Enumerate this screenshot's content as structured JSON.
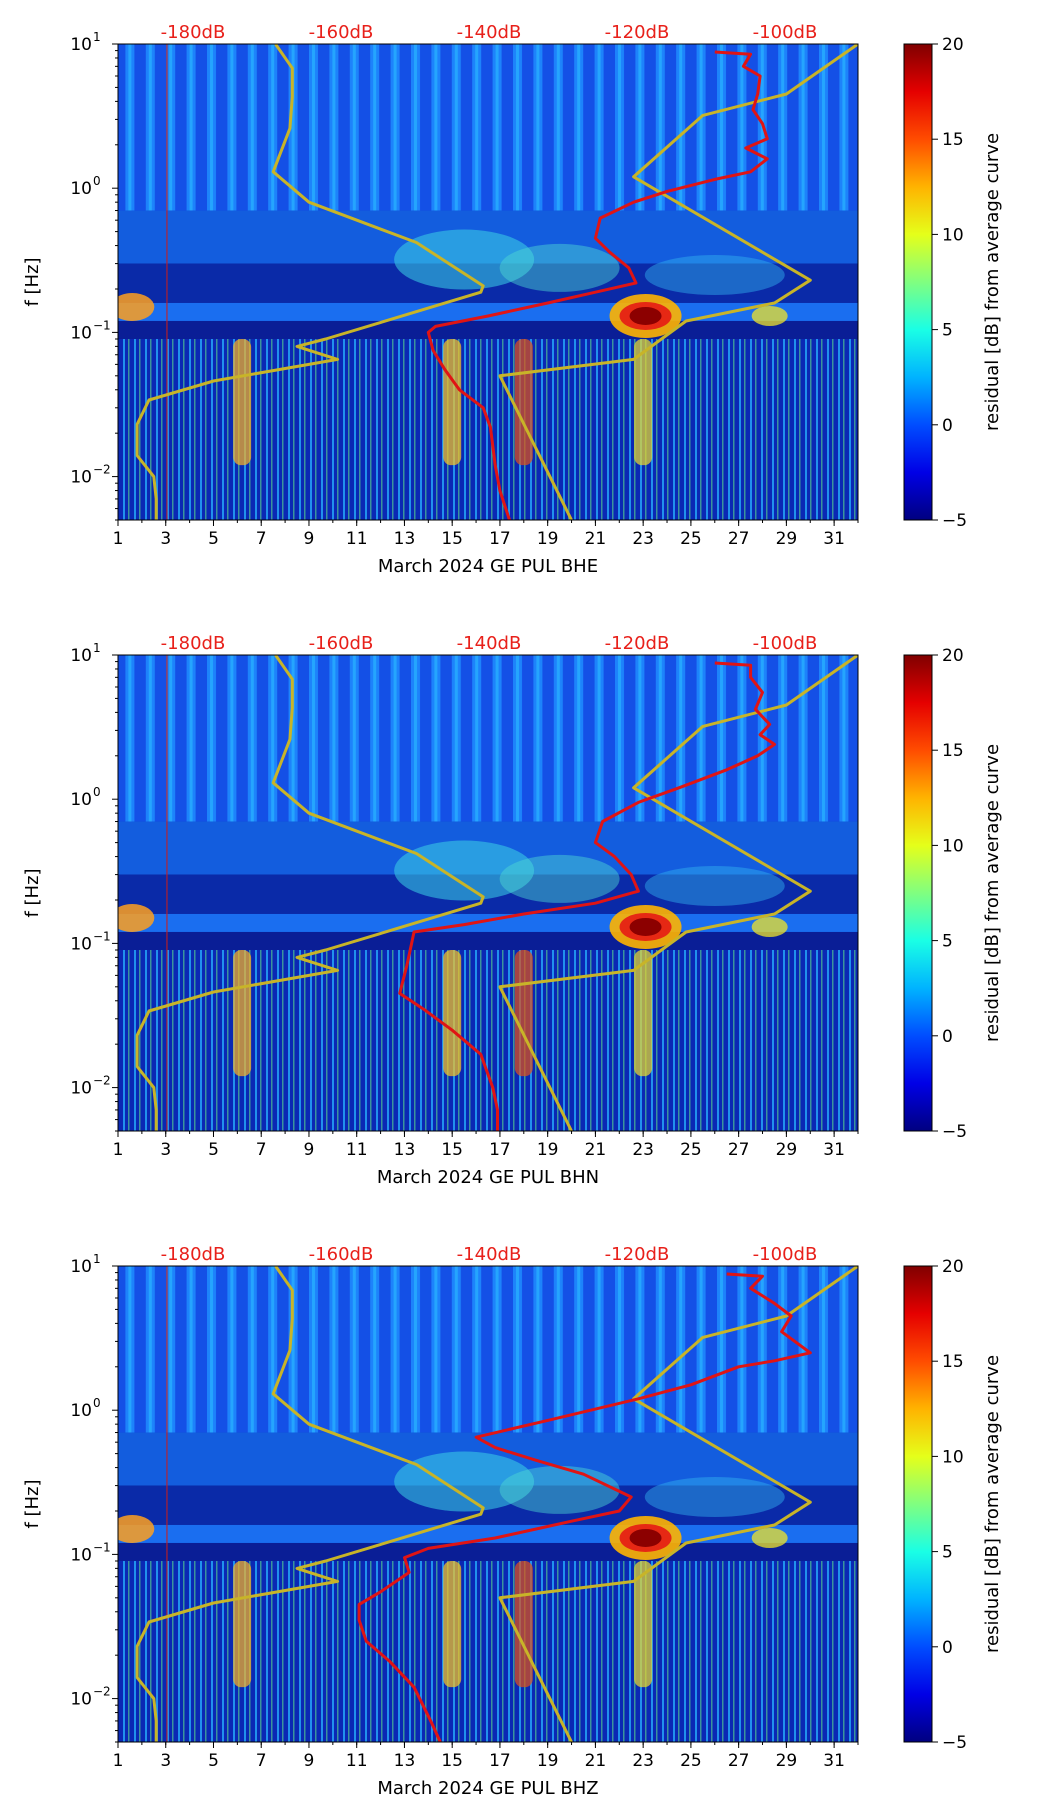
{
  "chart_data": [
    {
      "type": "heatmap",
      "xlabel": "March 2024 GE PUL  BHE",
      "ylabel": "f [Hz]",
      "x_ticks": [
        "1",
        "3",
        "5",
        "7",
        "9",
        "11",
        "13",
        "15",
        "17",
        "19",
        "21",
        "23",
        "25",
        "27",
        "29",
        "31"
      ],
      "xlim": [
        1,
        32
      ],
      "ylim": [
        0.005,
        10
      ],
      "yscale": "log",
      "y_ticks": [
        {
          "value": 0.01,
          "base": "10",
          "exp": "−2"
        },
        {
          "value": 0.1,
          "base": "10",
          "exp": "−1"
        },
        {
          "value": 1,
          "base": "10",
          "exp": "0"
        },
        {
          "value": 10,
          "base": "10",
          "exp": "1"
        }
      ],
      "top_db_labels": [
        "-180dB",
        "-160dB",
        "-140dB",
        "-120dB",
        "-100dB"
      ],
      "colorbar": {
        "label": "residual [dB] from average curve",
        "ticks": [
          "−5",
          "0",
          "5",
          "10",
          "15",
          "20"
        ],
        "min": -5,
        "max": 20,
        "colormap": "jet"
      },
      "series": [
        {
          "color": "#c8b428",
          "points": [
            [
              7.6,
              10
            ],
            [
              8.3,
              6.8
            ],
            [
              8.3,
              4.3
            ],
            [
              8.2,
              2.6
            ],
            [
              7.5,
              1.3
            ],
            [
              9.0,
              0.8
            ],
            [
              13.5,
              0.42
            ],
            [
              16.3,
              0.21
            ],
            [
              16.2,
              0.19
            ],
            [
              9.7,
              0.09
            ],
            [
              8.5,
              0.08
            ],
            [
              10.2,
              0.065
            ],
            [
              5.0,
              0.046
            ],
            [
              2.3,
              0.034
            ],
            [
              1.8,
              0.023
            ],
            [
              1.8,
              0.014
            ],
            [
              2.5,
              0.01
            ],
            [
              2.6,
              0.007
            ],
            [
              2.6,
              0.005
            ]
          ]
        },
        {
          "color": "#c8b428",
          "points": [
            [
              32,
              10
            ],
            [
              29,
              4.5
            ],
            [
              25.5,
              3.2
            ],
            [
              22.6,
              1.2
            ],
            [
              30,
              0.23
            ],
            [
              28.5,
              0.16
            ],
            [
              24.8,
              0.12
            ],
            [
              22.6,
              0.065
            ],
            [
              17,
              0.05
            ],
            [
              20,
              0.005
            ]
          ]
        },
        {
          "color": "#e01414",
          "points": [
            [
              26,
              8.8
            ],
            [
              27.5,
              8.5
            ],
            [
              27.2,
              7.0
            ],
            [
              27.9,
              6.0
            ],
            [
              27.8,
              4.5
            ],
            [
              27.6,
              3.5
            ],
            [
              28.0,
              2.8
            ],
            [
              28.2,
              2.2
            ],
            [
              27.3,
              1.9
            ],
            [
              28.2,
              1.6
            ],
            [
              27.5,
              1.3
            ],
            [
              26,
              1.15
            ],
            [
              24,
              0.95
            ],
            [
              22.6,
              0.8
            ],
            [
              21.2,
              0.62
            ],
            [
              21.0,
              0.45
            ],
            [
              21.6,
              0.36
            ],
            [
              22.4,
              0.28
            ],
            [
              22.7,
              0.22
            ],
            [
              21,
              0.19
            ],
            [
              19,
              0.16
            ],
            [
              16.5,
              0.13
            ],
            [
              14.3,
              0.11
            ],
            [
              14.0,
              0.1
            ],
            [
              14.2,
              0.075
            ],
            [
              14.7,
              0.055
            ],
            [
              15.3,
              0.04
            ],
            [
              16.3,
              0.03
            ],
            [
              16.6,
              0.022
            ],
            [
              16.8,
              0.012
            ],
            [
              17.0,
              0.008
            ],
            [
              17.4,
              0.005
            ]
          ]
        }
      ]
    },
    {
      "type": "heatmap",
      "xlabel": "March 2024 GE PUL  BHN",
      "ylabel": "f [Hz]",
      "x_ticks": [
        "1",
        "3",
        "5",
        "7",
        "9",
        "11",
        "13",
        "15",
        "17",
        "19",
        "21",
        "23",
        "25",
        "27",
        "29",
        "31"
      ],
      "xlim": [
        1,
        32
      ],
      "ylim": [
        0.005,
        10
      ],
      "yscale": "log",
      "y_ticks": [
        {
          "value": 0.01,
          "base": "10",
          "exp": "−2"
        },
        {
          "value": 0.1,
          "base": "10",
          "exp": "−1"
        },
        {
          "value": 1,
          "base": "10",
          "exp": "0"
        },
        {
          "value": 10,
          "base": "10",
          "exp": "1"
        }
      ],
      "top_db_labels": [
        "-180dB",
        "-160dB",
        "-140dB",
        "-120dB",
        "-100dB"
      ],
      "colorbar": {
        "label": "residual [dB] from average curve",
        "ticks": [
          "−5",
          "0",
          "5",
          "10",
          "15",
          "20"
        ],
        "min": -5,
        "max": 20,
        "colormap": "jet"
      },
      "series": [
        {
          "color": "#c8b428",
          "points": [
            [
              7.6,
              10
            ],
            [
              8.3,
              6.8
            ],
            [
              8.3,
              4.3
            ],
            [
              8.2,
              2.6
            ],
            [
              7.5,
              1.3
            ],
            [
              9.0,
              0.8
            ],
            [
              13.5,
              0.42
            ],
            [
              16.3,
              0.21
            ],
            [
              16.2,
              0.19
            ],
            [
              9.7,
              0.09
            ],
            [
              8.5,
              0.08
            ],
            [
              10.2,
              0.065
            ],
            [
              5.0,
              0.046
            ],
            [
              2.3,
              0.034
            ],
            [
              1.8,
              0.023
            ],
            [
              1.8,
              0.014
            ],
            [
              2.5,
              0.01
            ],
            [
              2.6,
              0.007
            ],
            [
              2.6,
              0.005
            ]
          ]
        },
        {
          "color": "#c8b428",
          "points": [
            [
              32,
              10
            ],
            [
              29,
              4.5
            ],
            [
              25.5,
              3.2
            ],
            [
              22.6,
              1.2
            ],
            [
              30,
              0.23
            ],
            [
              28.5,
              0.16
            ],
            [
              24.8,
              0.12
            ],
            [
              22.6,
              0.065
            ],
            [
              17,
              0.05
            ],
            [
              20,
              0.005
            ]
          ]
        },
        {
          "color": "#e01414",
          "points": [
            [
              26,
              8.8
            ],
            [
              27.5,
              8.5
            ],
            [
              27.5,
              7.0
            ],
            [
              28.0,
              5.5
            ],
            [
              27.7,
              4.2
            ],
            [
              28.3,
              3.3
            ],
            [
              27.9,
              2.8
            ],
            [
              28.5,
              2.4
            ],
            [
              27.8,
              2.0
            ],
            [
              26.5,
              1.6
            ],
            [
              24.5,
              1.2
            ],
            [
              22.8,
              0.95
            ],
            [
              21.3,
              0.7
            ],
            [
              21.0,
              0.5
            ],
            [
              21.8,
              0.4
            ],
            [
              22.5,
              0.3
            ],
            [
              22.8,
              0.23
            ],
            [
              21,
              0.19
            ],
            [
              18,
              0.16
            ],
            [
              15.5,
              0.135
            ],
            [
              13.4,
              0.12
            ],
            [
              13.3,
              0.1
            ],
            [
              13.1,
              0.07
            ],
            [
              12.8,
              0.045
            ],
            [
              13.8,
              0.035
            ],
            [
              15.0,
              0.025
            ],
            [
              16.2,
              0.017
            ],
            [
              16.7,
              0.01
            ],
            [
              16.9,
              0.007
            ],
            [
              16.9,
              0.005
            ]
          ]
        }
      ]
    },
    {
      "type": "heatmap",
      "xlabel": "March 2024 GE PUL  BHZ",
      "ylabel": "f [Hz]",
      "x_ticks": [
        "1",
        "3",
        "5",
        "7",
        "9",
        "11",
        "13",
        "15",
        "17",
        "19",
        "21",
        "23",
        "25",
        "27",
        "29",
        "31"
      ],
      "xlim": [
        1,
        32
      ],
      "ylim": [
        0.005,
        10
      ],
      "yscale": "log",
      "y_ticks": [
        {
          "value": 0.01,
          "base": "10",
          "exp": "−2"
        },
        {
          "value": 0.1,
          "base": "10",
          "exp": "−1"
        },
        {
          "value": 1,
          "base": "10",
          "exp": "0"
        },
        {
          "value": 10,
          "base": "10",
          "exp": "1"
        }
      ],
      "top_db_labels": [
        "-180dB",
        "-160dB",
        "-140dB",
        "-120dB",
        "-100dB"
      ],
      "colorbar": {
        "label": "residual [dB] from average curve",
        "ticks": [
          "−5",
          "0",
          "5",
          "10",
          "15",
          "20"
        ],
        "min": -5,
        "max": 20,
        "colormap": "jet"
      },
      "series": [
        {
          "color": "#c8b428",
          "points": [
            [
              7.6,
              10
            ],
            [
              8.3,
              6.8
            ],
            [
              8.3,
              4.3
            ],
            [
              8.2,
              2.6
            ],
            [
              7.5,
              1.3
            ],
            [
              9.0,
              0.8
            ],
            [
              13.5,
              0.42
            ],
            [
              16.3,
              0.21
            ],
            [
              16.2,
              0.19
            ],
            [
              9.7,
              0.09
            ],
            [
              8.5,
              0.08
            ],
            [
              10.2,
              0.065
            ],
            [
              5.0,
              0.046
            ],
            [
              2.3,
              0.034
            ],
            [
              1.8,
              0.023
            ],
            [
              1.8,
              0.014
            ],
            [
              2.5,
              0.01
            ],
            [
              2.6,
              0.007
            ],
            [
              2.6,
              0.005
            ]
          ]
        },
        {
          "color": "#c8b428",
          "points": [
            [
              32,
              10
            ],
            [
              29,
              4.5
            ],
            [
              25.5,
              3.2
            ],
            [
              22.6,
              1.2
            ],
            [
              30,
              0.23
            ],
            [
              28.5,
              0.16
            ],
            [
              24.8,
              0.12
            ],
            [
              22.6,
              0.065
            ],
            [
              17,
              0.05
            ],
            [
              20,
              0.005
            ]
          ]
        },
        {
          "color": "#e01414",
          "points": [
            [
              26.5,
              8.8
            ],
            [
              28,
              8.5
            ],
            [
              27.5,
              7.0
            ],
            [
              28.5,
              5.5
            ],
            [
              29.2,
              4.5
            ],
            [
              28.8,
              3.5
            ],
            [
              30.0,
              2.5
            ],
            [
              28.5,
              2.2
            ],
            [
              27.0,
              2.0
            ],
            [
              25.0,
              1.5
            ],
            [
              22.8,
              1.2
            ],
            [
              19,
              0.85
            ],
            [
              16,
              0.65
            ],
            [
              16.8,
              0.55
            ],
            [
              18.5,
              0.45
            ],
            [
              20.5,
              0.36
            ],
            [
              22.5,
              0.25
            ],
            [
              22.0,
              0.2
            ],
            [
              20,
              0.17
            ],
            [
              16.8,
              0.13
            ],
            [
              14.0,
              0.11
            ],
            [
              13.0,
              0.095
            ],
            [
              13.2,
              0.075
            ],
            [
              12.0,
              0.055
            ],
            [
              11.1,
              0.045
            ],
            [
              11.1,
              0.035
            ],
            [
              11.4,
              0.025
            ],
            [
              12.4,
              0.018
            ],
            [
              13.4,
              0.012
            ],
            [
              14.1,
              0.007
            ],
            [
              14.5,
              0.005
            ]
          ]
        }
      ]
    }
  ]
}
